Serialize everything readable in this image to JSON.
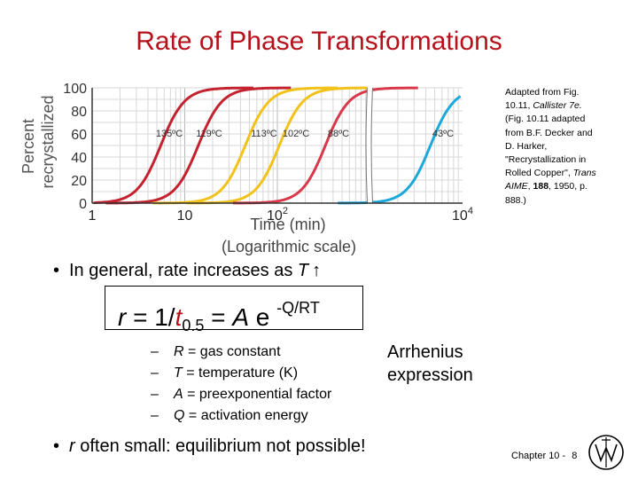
{
  "slide": {
    "title": "Rate of Phase Transformations",
    "caption": {
      "line1": "Adapted from Fig.",
      "line2": "10.11, ",
      "line2_italic": "Callister 7e.",
      "line3": "(Fig. 10.11 adapted",
      "line4": "from B.F. Decker and",
      "line5": "D. Harker,",
      "line6": "\"Recrystallization in",
      "line7a": "Rolled Copper\", ",
      "line7_italic": "Trans",
      "line8_italic": "AIME",
      "line8b": ", ",
      "line8_bold": "188",
      "line8c": ", 1950, p.",
      "line9": "888.)"
    },
    "bullet1": {
      "text": "In general, rate increases as ",
      "var": "T",
      "arrow": "↑"
    },
    "equation": {
      "r": "r",
      "eq1": " = 1/",
      "t": "t",
      "sub": "0.5",
      "eq2": " = ",
      "A": "A",
      "e": " e ",
      "sup": "-Q/RT"
    },
    "definitions": [
      {
        "dash": "–",
        "var": "R",
        "rest": " = gas constant"
      },
      {
        "dash": "–",
        "var": "T",
        "rest": " = temperature (K)"
      },
      {
        "dash": "–",
        "var": "A",
        "rest": " = preexponential factor"
      },
      {
        "dash": "–",
        "var": "Q",
        "rest": " = activation energy"
      }
    ],
    "arrhenius": {
      "line1": "Arrhenius",
      "line2": "expression"
    },
    "bullet2": {
      "var": "r",
      "text": " often small: equilibrium not possible!"
    },
    "bullet_symbol": "•",
    "footer": {
      "chapter": "Chapter 10 -",
      "page": "8"
    }
  },
  "colors": {
    "title": "#b5121b",
    "curve_135": "#c4222e",
    "curve_119": "#c4222e",
    "curve_113": "#f2c21a",
    "curve_102": "#f2c21a",
    "curve_88": "#d9374a",
    "curve_43": "#1ba8dd"
  },
  "chart_data": {
    "type": "line",
    "title": "",
    "ylabel_line1": "Percent",
    "ylabel_line2": "recrystallized",
    "xlabel_line1": "Time (min)",
    "xlabel_line2": "(Logarithmic scale)",
    "xscale": "log",
    "xlim": [
      1,
      10000
    ],
    "ylim": [
      0,
      100
    ],
    "x_ticks": [
      {
        "value": 1,
        "label": "1",
        "sup": ""
      },
      {
        "value": 10,
        "label": "10",
        "sup": ""
      },
      {
        "value": 100,
        "label": "10",
        "sup": "2"
      },
      {
        "value": 10000,
        "label": "10",
        "sup": "4"
      }
    ],
    "y_ticks": [
      "0",
      "20",
      "40",
      "60",
      "80",
      "100"
    ],
    "grid": true,
    "axis_break_at": 1000,
    "series": [
      {
        "name": "135ºC",
        "t50": 5.5,
        "color": "#c4222e"
      },
      {
        "name": "119ºC",
        "t50": 14,
        "color": "#c4222e"
      },
      {
        "name": "113ºC",
        "t50": 45,
        "color": "#f2c21a"
      },
      {
        "name": "102ºC",
        "t50": 105,
        "color": "#f2c21a"
      },
      {
        "name": "88ºC",
        "t50": 330,
        "color": "#d9374a"
      },
      {
        "name": "43ºC",
        "t50": 4500,
        "color": "#1ba8dd"
      }
    ]
  }
}
